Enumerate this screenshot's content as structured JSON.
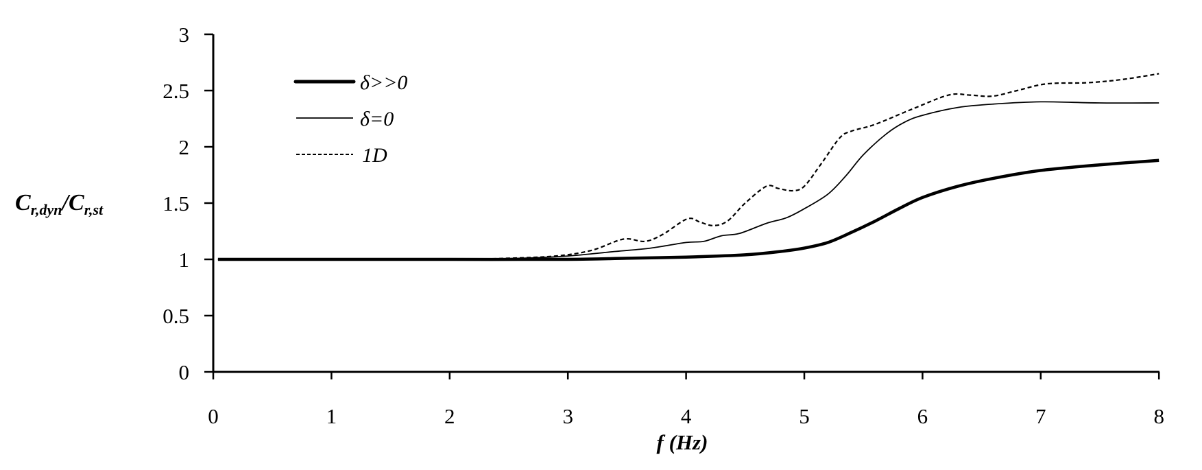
{
  "chart_data": {
    "type": "line",
    "title": "",
    "xlabel": "f (Hz)",
    "ylabel": "C_r,dyn/C_r,st",
    "ylabel_parts": {
      "main1": "C",
      "sub1": "r,dyn",
      "slash": "/",
      "main2": "C",
      "sub2": "r,st"
    },
    "xlim": [
      0,
      8
    ],
    "ylim": [
      0,
      3
    ],
    "xticks": [
      "0",
      "1",
      "2",
      "3",
      "4",
      "5",
      "6",
      "7",
      "8"
    ],
    "yticks": [
      "0",
      "0.5",
      "1",
      "1.5",
      "2",
      "2.5",
      "3"
    ],
    "grid": false,
    "legend_position": "upper-left",
    "series": [
      {
        "name": "δ>>0",
        "style": "thick-solid",
        "x": [
          0.04,
          1,
          2,
          3,
          3.5,
          4,
          4.5,
          4.8,
          5.0,
          5.2,
          5.4,
          5.6,
          5.8,
          6.0,
          6.3,
          6.6,
          7.0,
          7.5,
          8.0
        ],
        "values": [
          1.0,
          1.0,
          1.0,
          1.0,
          1.01,
          1.02,
          1.04,
          1.07,
          1.1,
          1.15,
          1.24,
          1.34,
          1.45,
          1.55,
          1.65,
          1.72,
          1.79,
          1.84,
          1.88
        ]
      },
      {
        "name": "δ=0",
        "style": "thin-solid",
        "x": [
          0.04,
          1,
          2,
          2.6,
          3.0,
          3.4,
          3.7,
          4.0,
          4.15,
          4.3,
          4.45,
          4.68,
          4.85,
          5.0,
          5.2,
          5.35,
          5.5,
          5.7,
          5.85,
          6.0,
          6.3,
          6.6,
          7.0,
          7.5,
          8.0
        ],
        "values": [
          1.0,
          1.0,
          1.0,
          1.01,
          1.03,
          1.07,
          1.1,
          1.15,
          1.16,
          1.21,
          1.23,
          1.32,
          1.37,
          1.45,
          1.58,
          1.74,
          1.93,
          2.12,
          2.22,
          2.28,
          2.35,
          2.38,
          2.4,
          2.39,
          2.39
        ]
      },
      {
        "name": "1D",
        "style": "dashed",
        "x": [
          0.04,
          1,
          2,
          2.5,
          2.9,
          3.2,
          3.47,
          3.65,
          3.8,
          4.01,
          4.12,
          4.23,
          4.35,
          4.5,
          4.68,
          4.78,
          4.9,
          5.0,
          5.15,
          5.3,
          5.4,
          5.6,
          5.9,
          6.22,
          6.4,
          6.59,
          6.8,
          7.05,
          7.4,
          7.7,
          8.0
        ],
        "values": [
          1.0,
          1.0,
          1.0,
          1.01,
          1.03,
          1.08,
          1.18,
          1.16,
          1.22,
          1.36,
          1.33,
          1.3,
          1.34,
          1.5,
          1.65,
          1.63,
          1.61,
          1.65,
          1.86,
          2.08,
          2.14,
          2.2,
          2.33,
          2.46,
          2.46,
          2.45,
          2.5,
          2.56,
          2.57,
          2.6,
          2.65
        ]
      }
    ]
  },
  "legend": {
    "items": [
      {
        "label": "δ>>0"
      },
      {
        "label": "δ=0"
      },
      {
        "label": "1D"
      }
    ]
  }
}
